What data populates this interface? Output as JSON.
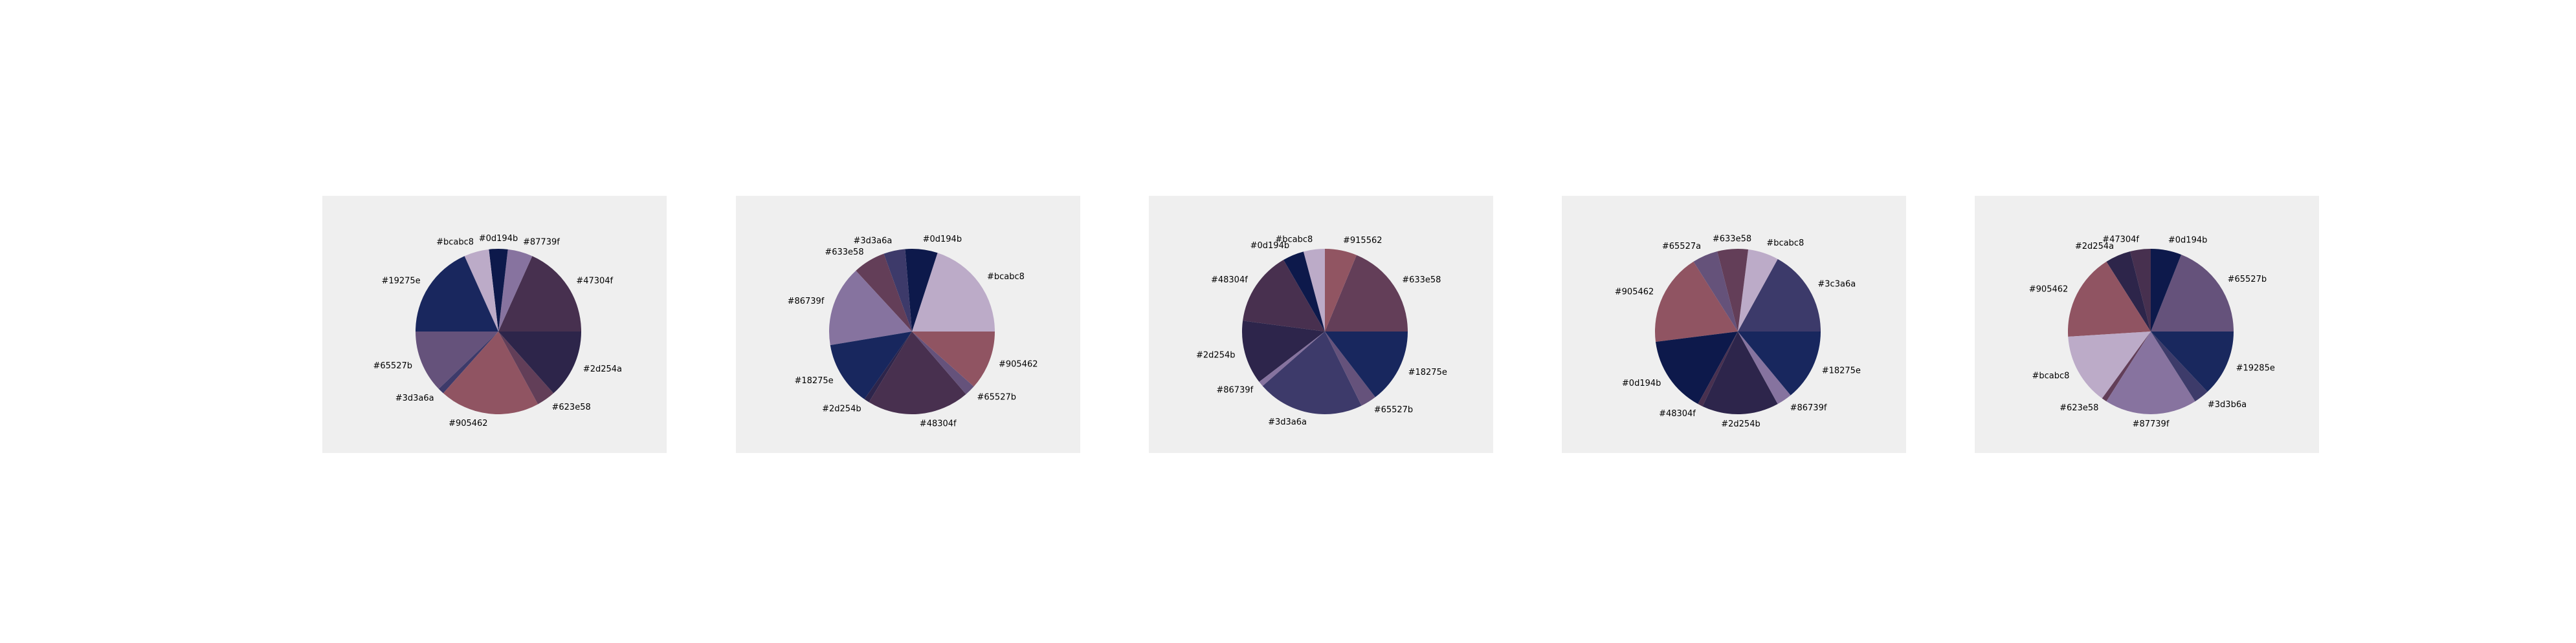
{
  "chart_data": [
    {
      "type": "pie",
      "slices": [
        {
          "label": "#47304f",
          "value": 15,
          "color": "#47304f"
        },
        {
          "label": "#87739f",
          "value": 4,
          "color": "#87739f"
        },
        {
          "label": "#0d194b",
          "value": 3,
          "color": "#0d194b"
        },
        {
          "label": "#bcabc8",
          "value": 4,
          "color": "#bcabc8"
        },
        {
          "label": "#19275e",
          "value": 15,
          "color": "#19275e"
        },
        {
          "label": "#65527b",
          "value": 10,
          "color": "#65527b"
        },
        {
          "label": "#3d3a6a",
          "value": 1,
          "color": "#3d3a6a"
        },
        {
          "label": "#905462",
          "value": 16,
          "color": "#905462"
        },
        {
          "label": "#623e58",
          "value": 3,
          "color": "#623e58"
        },
        {
          "label": "#2d254a",
          "value": 11,
          "color": "#2d254a"
        }
      ]
    },
    {
      "type": "pie",
      "slices": [
        {
          "label": "#bcabc8",
          "value": 19,
          "color": "#bcabc8"
        },
        {
          "label": "#0d194b",
          "value": 6,
          "color": "#0d194b"
        },
        {
          "label": "#3d3a6a",
          "value": 4,
          "color": "#3d3a6a"
        },
        {
          "label": "#633e58",
          "value": 6,
          "color": "#633e58"
        },
        {
          "label": "#86739f",
          "value": 15,
          "color": "#86739f"
        },
        {
          "label": "#18275e",
          "value": 12,
          "color": "#18275e"
        },
        {
          "label": "#2d254b",
          "value": 1,
          "color": "#2d254b"
        },
        {
          "label": "#48304f",
          "value": 19,
          "color": "#48304f"
        },
        {
          "label": "#65527b",
          "value": 2,
          "color": "#65527b"
        },
        {
          "label": "#905462",
          "value": 11,
          "color": "#905462"
        }
      ]
    },
    {
      "type": "pie",
      "slices": [
        {
          "label": "#633e58",
          "value": 18,
          "color": "#633e58"
        },
        {
          "label": "#915562",
          "value": 6,
          "color": "#915562"
        },
        {
          "label": "#bcabc8",
          "value": 4,
          "color": "#bcabc8"
        },
        {
          "label": "#0d194b",
          "value": 4,
          "color": "#0d194b"
        },
        {
          "label": "#48304f",
          "value": 14,
          "color": "#48304f"
        },
        {
          "label": "#2d254b",
          "value": 12,
          "color": "#2d254b"
        },
        {
          "label": "#86739f",
          "value": 1,
          "color": "#86739f"
        },
        {
          "label": "#3d3a6a",
          "value": 20,
          "color": "#3d3a6a"
        },
        {
          "label": "#65527b",
          "value": 3,
          "color": "#65527b"
        },
        {
          "label": "#18275e",
          "value": 14,
          "color": "#18275e"
        }
      ]
    },
    {
      "type": "pie",
      "slices": [
        {
          "label": "#3c3a6a",
          "value": 17,
          "color": "#3c3a6a"
        },
        {
          "label": "#bcabc8",
          "value": 6,
          "color": "#bcabc8"
        },
        {
          "label": "#633e58",
          "value": 6,
          "color": "#633e58"
        },
        {
          "label": "#65527a",
          "value": 5,
          "color": "#65527a"
        },
        {
          "label": "#905462",
          "value": 18,
          "color": "#905462"
        },
        {
          "label": "#0d194b",
          "value": 15,
          "color": "#0d194b"
        },
        {
          "label": "#48304f",
          "value": 1,
          "color": "#48304f"
        },
        {
          "label": "#2d254b",
          "value": 15,
          "color": "#2d254b"
        },
        {
          "label": "#86739f",
          "value": 3,
          "color": "#86739f"
        },
        {
          "label": "#18275e",
          "value": 14,
          "color": "#18275e"
        }
      ]
    },
    {
      "type": "pie",
      "slices": [
        {
          "label": "#65527b",
          "value": 19,
          "color": "#65527b"
        },
        {
          "label": "#0d194b",
          "value": 6,
          "color": "#0d194b"
        },
        {
          "label": "#47304f",
          "value": 4,
          "color": "#47304f"
        },
        {
          "label": "#2d254a",
          "value": 5,
          "color": "#2d254a"
        },
        {
          "label": "#905462",
          "value": 17,
          "color": "#905462"
        },
        {
          "label": "#bcabc8",
          "value": 14,
          "color": "#bcabc8"
        },
        {
          "label": "#623e58",
          "value": 1,
          "color": "#623e58"
        },
        {
          "label": "#87739f",
          "value": 18,
          "color": "#87739f"
        },
        {
          "label": "#3d3b6a",
          "value": 3,
          "color": "#3d3b6a"
        },
        {
          "label": "#19285e",
          "value": 13,
          "color": "#19285e"
        }
      ]
    }
  ]
}
